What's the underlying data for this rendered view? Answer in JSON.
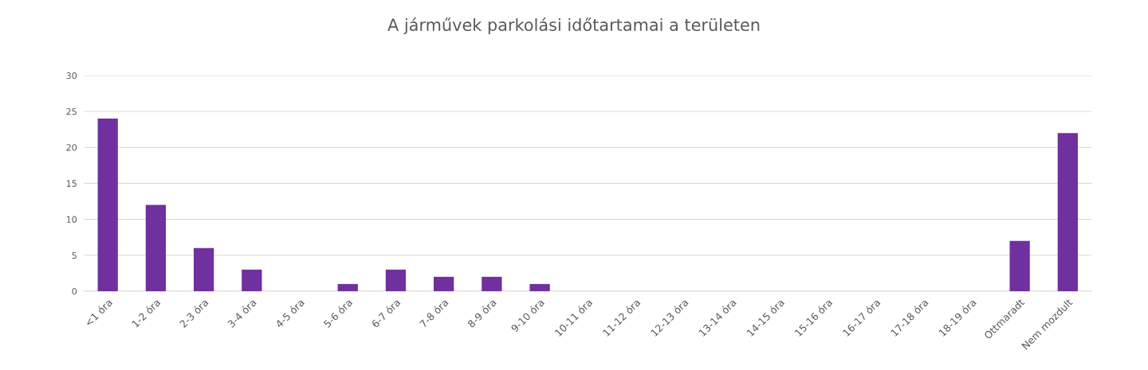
{
  "chart_data": {
    "type": "bar",
    "title": "A járművek parkolási időtartamai a területen",
    "categories": [
      "<1 óra",
      "1-2 óra",
      "2-3 óra",
      "3-4 óra",
      "4-5 óra",
      "5-6 óra",
      "6-7 óra",
      "7-8 óra",
      "8-9 óra",
      "9-10 óra",
      "10-11 óra",
      "11-12 óra",
      "12-13 óra",
      "13-14 óra",
      "14-15 óra",
      "15-16 óra",
      "16-17 óra",
      "17-18 óra",
      "18-19 óra",
      "Ottmaradt",
      "Nem mozdult"
    ],
    "values": [
      24,
      12,
      6,
      3,
      0,
      1,
      3,
      2,
      2,
      1,
      0,
      0,
      0,
      0,
      0,
      0,
      0,
      0,
      0,
      7,
      22
    ],
    "color": "#7030a0",
    "ylim": [
      0,
      30
    ],
    "yticks": [
      0,
      5,
      10,
      15,
      20,
      25,
      30
    ],
    "grid": "y"
  }
}
